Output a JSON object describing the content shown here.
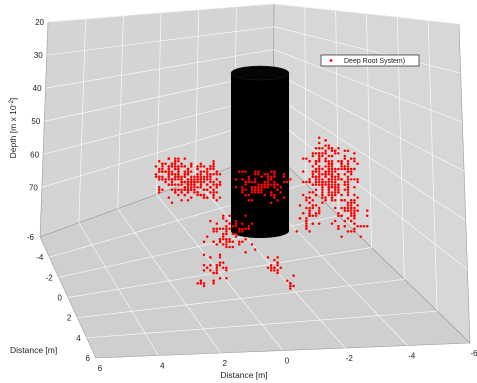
{
  "chart_data": {
    "type": "scatter",
    "title": "",
    "xlabel": "Distance [m]",
    "ylabel": "Distance [m]",
    "zlabel": "Depth [m x 10",
    "zlabel_exponent": "-2",
    "zlabel_suffix": "]",
    "x_ticks": [
      "6",
      "4",
      "2",
      "0",
      "-2",
      "-4",
      "-6"
    ],
    "y_ticks": [
      "-6",
      "-4",
      "-2",
      "0",
      "2",
      "4",
      "6"
    ],
    "z_ticks": [
      "20",
      "30",
      "40",
      "50",
      "60",
      "70"
    ],
    "xlim": [
      -6,
      6
    ],
    "ylim": [
      -6,
      6
    ],
    "zlim": [
      20,
      85
    ],
    "grid": true,
    "background_color": "#d4d4d4",
    "legend": {
      "position": "top-right",
      "entries": [
        "Deep Root System)"
      ]
    },
    "series": [
      {
        "name": "Deep Root System)",
        "marker": "point",
        "color": "#ff0000"
      }
    ],
    "trunk_color": "#000000"
  }
}
